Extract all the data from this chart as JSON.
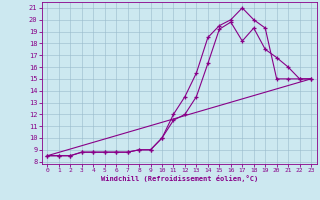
{
  "xlabel": "Windchill (Refroidissement éolien,°C)",
  "background_color": "#cce8f0",
  "line_color": "#880088",
  "marker": "+",
  "xlim": [
    -0.5,
    23.5
  ],
  "ylim": [
    7.8,
    21.5
  ],
  "xticks": [
    0,
    1,
    2,
    3,
    4,
    5,
    6,
    7,
    8,
    9,
    10,
    11,
    12,
    13,
    14,
    15,
    16,
    17,
    18,
    19,
    20,
    21,
    22,
    23
  ],
  "yticks": [
    8,
    9,
    10,
    11,
    12,
    13,
    14,
    15,
    16,
    17,
    18,
    19,
    20,
    21
  ],
  "line1_x": [
    0,
    1,
    2,
    3,
    4,
    5,
    6,
    7,
    8,
    9,
    10,
    11,
    12,
    13,
    14,
    15,
    16,
    17,
    18,
    19,
    20,
    21,
    22,
    23
  ],
  "line1_y": [
    8.5,
    8.5,
    8.5,
    8.8,
    8.8,
    8.8,
    8.8,
    8.8,
    9.0,
    9.0,
    10.0,
    12.0,
    13.5,
    15.5,
    18.5,
    19.5,
    20.0,
    21.0,
    20.0,
    19.3,
    15.0,
    15.0,
    15.0,
    15.0
  ],
  "line2_x": [
    0,
    1,
    2,
    3,
    4,
    5,
    6,
    7,
    8,
    9,
    10,
    11,
    12,
    13,
    14,
    15,
    16,
    17,
    18,
    19,
    20,
    21,
    22,
    23
  ],
  "line2_y": [
    8.5,
    8.5,
    8.5,
    8.8,
    8.8,
    8.8,
    8.8,
    8.8,
    9.0,
    9.0,
    10.0,
    11.5,
    12.0,
    13.5,
    16.3,
    19.2,
    19.8,
    18.2,
    19.3,
    17.5,
    16.8,
    16.0,
    15.0,
    15.0
  ],
  "line3_x": [
    0,
    23
  ],
  "line3_y": [
    8.5,
    15.0
  ],
  "figwidth": 3.2,
  "figheight": 2.0,
  "dpi": 100
}
